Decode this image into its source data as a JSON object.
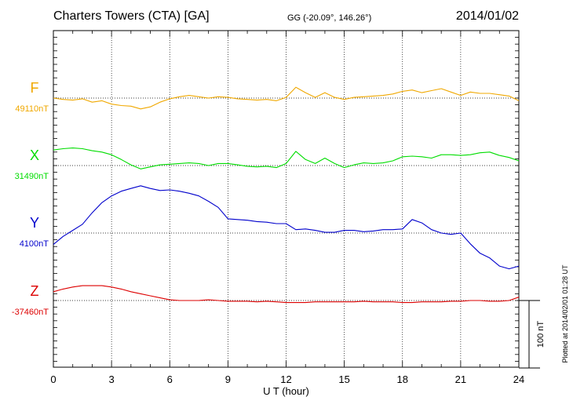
{
  "header": {
    "station": "Charters Towers (CTA)  [GA]",
    "coords": "GG (-20.09°, 146.26°)",
    "date": "2014/01/02"
  },
  "footer": {
    "plotted": "Plotted at 2014/02/01 01:28 UT"
  },
  "colors": {
    "F": "#f0a800",
    "X": "#00dd00",
    "Y": "#0000cc",
    "Z": "#dd0000"
  },
  "chart_data": {
    "type": "line",
    "xlabel": "U T (hour)",
    "xlim": [
      0,
      24
    ],
    "xticks": [
      0,
      3,
      6,
      9,
      12,
      15,
      18,
      21,
      24
    ],
    "scale_bar": "100 nT",
    "grid": true,
    "series": [
      {
        "name": "F",
        "baseline_label": "49110nT",
        "baseline": 49110,
        "x": [
          0,
          0.5,
          1,
          1.5,
          2,
          2.5,
          3,
          3.5,
          4,
          4.5,
          5,
          5.5,
          6,
          6.5,
          7,
          7.5,
          8,
          8.5,
          9,
          9.5,
          10,
          10.5,
          11,
          11.5,
          12,
          12.5,
          13,
          13.5,
          14,
          14.5,
          15,
          15.5,
          16,
          16.5,
          17,
          17.5,
          18,
          18.5,
          19,
          19.5,
          20,
          20.5,
          21,
          21.5,
          22,
          22.5,
          23,
          23.5,
          24
        ],
        "y": [
          49110,
          49108,
          49107,
          49109,
          49104,
          49106,
          49101,
          49099,
          49098,
          49094,
          49097,
          49104,
          49109,
          49112,
          49114,
          49112,
          49110,
          49112,
          49111,
          49109,
          49108,
          49107,
          49108,
          49106,
          49111,
          49126,
          49118,
          49111,
          49118,
          49111,
          49108,
          49111,
          49112,
          49113,
          49114,
          49116,
          49120,
          49122,
          49118,
          49121,
          49124,
          49119,
          49114,
          49119,
          49117,
          49117,
          49115,
          49113,
          49106
        ]
      },
      {
        "name": "X",
        "baseline_label": "31490nT",
        "baseline": 31490,
        "x": [
          0,
          0.5,
          1,
          1.5,
          2,
          2.5,
          3,
          3.5,
          4,
          4.5,
          5,
          5.5,
          6,
          6.5,
          7,
          7.5,
          8,
          8.5,
          9,
          9.5,
          10,
          10.5,
          11,
          11.5,
          12,
          12.5,
          13,
          13.5,
          14,
          14.5,
          15,
          15.5,
          16,
          16.5,
          17,
          17.5,
          18,
          18.5,
          19,
          19.5,
          20,
          20.5,
          21,
          21.5,
          22,
          22.5,
          23,
          23.5,
          24
        ],
        "y": [
          31513,
          31515,
          31516,
          31515,
          31512,
          31510,
          31506,
          31499,
          31491,
          31485,
          31488,
          31491,
          31492,
          31493,
          31494,
          31493,
          31490,
          31493,
          31493,
          31491,
          31489,
          31488,
          31489,
          31487,
          31493,
          31511,
          31499,
          31493,
          31501,
          31493,
          31487,
          31491,
          31494,
          31493,
          31494,
          31497,
          31503,
          31504,
          31503,
          31501,
          31506,
          31506,
          31505,
          31506,
          31509,
          31510,
          31505,
          31502,
          31497
        ]
      },
      {
        "name": "Y",
        "baseline_label": "4100nT",
        "baseline": 4100,
        "x": [
          0,
          0.5,
          1,
          1.5,
          2,
          2.5,
          3,
          3.5,
          4,
          4.5,
          5,
          5.5,
          6,
          6.5,
          7,
          7.5,
          8,
          8.5,
          9,
          9.5,
          10,
          10.5,
          11,
          11.5,
          12,
          12.5,
          13,
          13.5,
          14,
          14.5,
          15,
          15.5,
          16,
          16.5,
          17,
          17.5,
          18,
          18.5,
          19,
          19.5,
          20,
          20.5,
          21,
          21.5,
          22,
          22.5,
          23,
          23.5,
          24
        ],
        "y": [
          4083,
          4095,
          4104,
          4113,
          4130,
          4145,
          4155,
          4162,
          4166,
          4170,
          4166,
          4163,
          4164,
          4162,
          4159,
          4155,
          4147,
          4138,
          4121,
          4120,
          4119,
          4117,
          4116,
          4114,
          4114,
          4105,
          4106,
          4104,
          4101,
          4101,
          4104,
          4104,
          4102,
          4103,
          4105,
          4105,
          4106,
          4120,
          4115,
          4105,
          4100,
          4098,
          4100,
          4084,
          4070,
          4063,
          4051,
          4047,
          4051
        ]
      },
      {
        "name": "Z",
        "baseline_label": "-37460nT",
        "baseline": -37460,
        "x": [
          0,
          0.5,
          1,
          1.5,
          2,
          2.5,
          3,
          3.5,
          4,
          4.5,
          5,
          5.5,
          6,
          6.5,
          7,
          7.5,
          8,
          8.5,
          9,
          9.5,
          10,
          10.5,
          11,
          11.5,
          12,
          12.5,
          13,
          13.5,
          14,
          14.5,
          15,
          15.5,
          16,
          16.5,
          17,
          17.5,
          18,
          18.5,
          19,
          19.5,
          20,
          20.5,
          21,
          21.5,
          22,
          22.5,
          23,
          23.5,
          24
        ],
        "y": [
          -37447,
          -37443,
          -37440,
          -37438,
          -37438,
          -37438,
          -37440,
          -37443,
          -37447,
          -37450,
          -37453,
          -37456,
          -37459,
          -37460,
          -37460,
          -37460,
          -37459,
          -37460,
          -37461,
          -37461,
          -37461,
          -37462,
          -37461,
          -37462,
          -37463,
          -37463,
          -37463,
          -37462,
          -37462,
          -37462,
          -37462,
          -37462,
          -37461,
          -37462,
          -37462,
          -37462,
          -37463,
          -37463,
          -37462,
          -37462,
          -37462,
          -37461,
          -37461,
          -37460,
          -37460,
          -37461,
          -37461,
          -37460,
          -37455
        ]
      }
    ]
  }
}
